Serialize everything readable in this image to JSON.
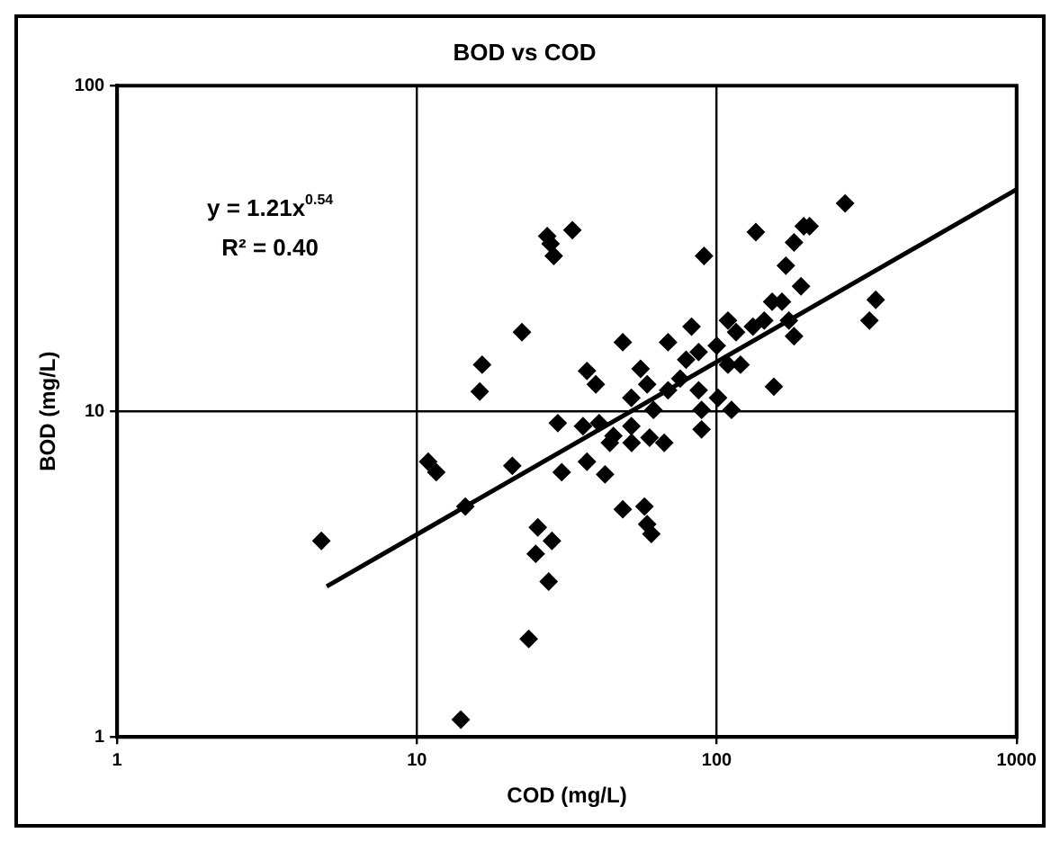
{
  "chart_data": {
    "type": "scatter",
    "title": "BOD vs COD",
    "xlabel": "COD (mg/L)",
    "ylabel": "BOD (mg/L)",
    "log": "xy",
    "grid": true,
    "legend": false,
    "marker": "diamond",
    "xlim": [
      1,
      1000
    ],
    "xticks": [
      1,
      10,
      100,
      1000
    ],
    "ylim": [
      1,
      100
    ],
    "yticks": [
      1,
      10,
      100
    ],
    "annotations": [
      "y = 1.21x$^{0.54}$",
      "R² = 0.40"
    ],
    "series": [
      {
        "color": "#000000",
        "x": [
          4.8,
          10.9,
          11.6,
          14.5,
          14,
          16.5,
          16.2,
          22.4,
          20.8,
          23.6,
          25.3,
          24.9,
          28.2,
          27.5,
          27.9,
          29.5,
          30.4,
          27.2,
          28.6,
          33,
          35.8,
          36.9,
          42.4,
          48.6,
          57.4,
          58.6,
          60.5,
          36.9,
          39.5,
          48.6,
          68.8,
          82.4,
          90.7,
          55.7,
          58.6,
          51.9,
          40.5,
          45.2,
          51.9,
          44,
          52,
          59.7,
          66.8,
          61.5,
          68.8,
          75.5,
          79,
          87,
          87,
          89,
          89,
          100,
          101,
          112,
          109,
          116,
          120,
          109,
          132,
          144,
          153,
          165,
          174,
          181,
          155,
          135,
          181,
          195,
          204,
          170,
          191,
          268,
          339,
          323
        ],
        "values": [
          4.0,
          7.0,
          6.5,
          5.1,
          1.13,
          13.9,
          11.5,
          17.5,
          6.8,
          2.0,
          4.4,
          3.65,
          4.0,
          3.0,
          32.7,
          9.2,
          6.5,
          34.5,
          30,
          36,
          9.0,
          7.0,
          6.4,
          5.0,
          5.1,
          4.5,
          4.2,
          13.3,
          12.1,
          16.3,
          16.3,
          18.2,
          30,
          13.5,
          12.1,
          11.0,
          9.2,
          8.4,
          9.0,
          8.0,
          8.0,
          8.3,
          8.0,
          10.1,
          11.6,
          12.6,
          14.4,
          15.2,
          11.6,
          10.1,
          8.8,
          15.9,
          11.0,
          10.1,
          19,
          17.5,
          13.9,
          13.9,
          18.2,
          19,
          21.7,
          21.7,
          19,
          17,
          11.9,
          35.5,
          33,
          37,
          37,
          28,
          24.2,
          43.5,
          22,
          19
        ]
      },
      {
        "type": "line",
        "color": "#000000",
        "marker": "none",
        "x": [
          5,
          1000
        ],
        "values": [
          2.9,
          48
        ]
      }
    ]
  }
}
